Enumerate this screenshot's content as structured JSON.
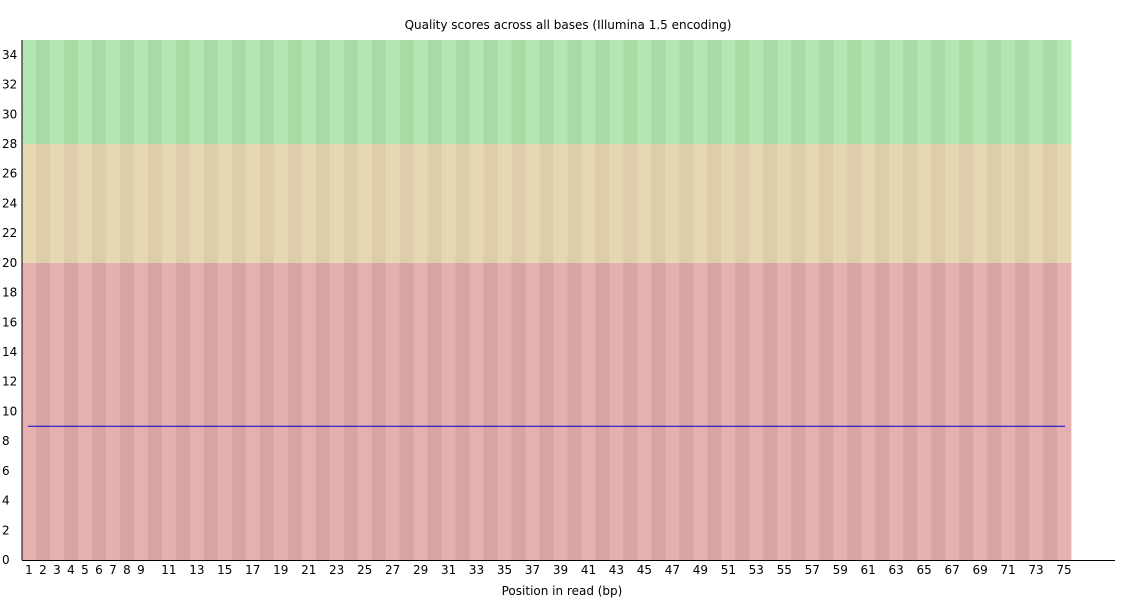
{
  "chart_data": {
    "type": "line",
    "title": "Quality scores across all bases (Illumina 1.5 encoding)",
    "xlabel": "Position in read (bp)",
    "ylabel": "",
    "xlim": [
      1,
      75
    ],
    "ylim": [
      0,
      35
    ],
    "x_tick_labels": [
      "1",
      "2",
      "3",
      "4",
      "5",
      "6",
      "7",
      "8",
      "9",
      "11",
      "13",
      "15",
      "17",
      "19",
      "21",
      "23",
      "25",
      "27",
      "29",
      "31",
      "33",
      "35",
      "37",
      "39",
      "41",
      "43",
      "45",
      "47",
      "49",
      "51",
      "53",
      "55",
      "57",
      "59",
      "61",
      "63",
      "65",
      "67",
      "69",
      "71",
      "73",
      "75"
    ],
    "y_tick_labels": [
      "0",
      "2",
      "4",
      "6",
      "8",
      "10",
      "12",
      "14",
      "16",
      "18",
      "20",
      "22",
      "24",
      "26",
      "28",
      "30",
      "32",
      "34"
    ],
    "quality_bands": [
      {
        "name": "poor",
        "from": 0,
        "to": 20,
        "colors": [
          "#e6b0b0",
          "#d9a3a3"
        ]
      },
      {
        "name": "reasonable",
        "from": 20,
        "to": 28,
        "colors": [
          "#e6d7b3",
          "#ddcdaa"
        ]
      },
      {
        "name": "good",
        "from": 28,
        "to": 35,
        "colors": [
          "#b3e6b3",
          "#a6dba6"
        ]
      }
    ],
    "series": [
      {
        "color": "#0000cc",
        "x": [
          1,
          75
        ],
        "y": [
          9,
          9
        ]
      }
    ],
    "grid": false,
    "legend": "none"
  }
}
